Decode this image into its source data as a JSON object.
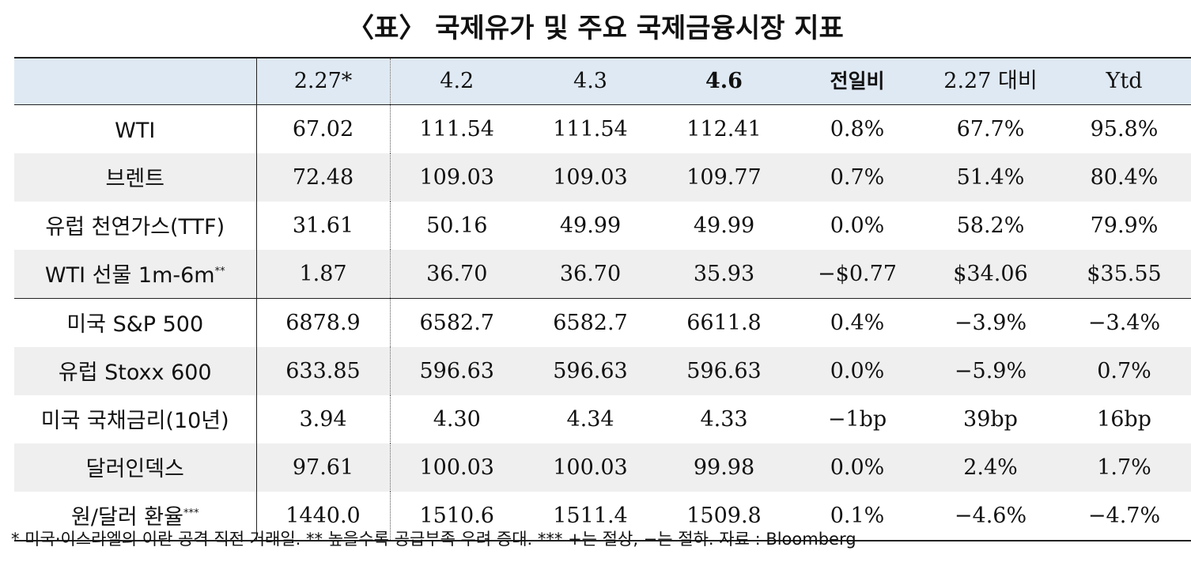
{
  "title": "〈표〉 국제유가 및 주요 국제금융시장 지표",
  "header": {
    "label": "",
    "col_227": "2.27*",
    "col_42": "4.2",
    "col_43": "4.3",
    "col_46": "4.6",
    "col_dod": "전일비",
    "col_vs227": "2.27 대비",
    "col_ytd": "Ytd"
  },
  "rows": [
    {
      "label": "WTI",
      "note": "",
      "v227": "67.02",
      "v42": "111.54",
      "v43": "111.54",
      "v46": "112.41",
      "dod": "0.8%",
      "vs227": "67.7%",
      "ytd": "95.8%"
    },
    {
      "label": "브렌트",
      "note": "",
      "v227": "72.48",
      "v42": "109.03",
      "v43": "109.03",
      "v46": "109.77",
      "dod": "0.7%",
      "vs227": "51.4%",
      "ytd": "80.4%"
    },
    {
      "label": "유럽 천연가스(TTF)",
      "note": "",
      "v227": "31.61",
      "v42": "50.16",
      "v43": "49.99",
      "v46": "49.99",
      "dod": "0.0%",
      "vs227": "58.2%",
      "ytd": "79.9%"
    },
    {
      "label": "WTI 선물 1m-6m",
      "note": "**",
      "v227": "1.87",
      "v42": "36.70",
      "v43": "36.70",
      "v46": "35.93",
      "dod": "−$0.77",
      "vs227": "$34.06",
      "ytd": "$35.55"
    },
    {
      "label": "미국 S&P 500",
      "note": "",
      "v227": "6878.9",
      "v42": "6582.7",
      "v43": "6582.7",
      "v46": "6611.8",
      "dod": "0.4%",
      "vs227": "−3.9%",
      "ytd": "−3.4%"
    },
    {
      "label": "유럽 Stoxx 600",
      "note": "",
      "v227": "633.85",
      "v42": "596.63",
      "v43": "596.63",
      "v46": "596.63",
      "dod": "0.0%",
      "vs227": "−5.9%",
      "ytd": "0.7%"
    },
    {
      "label": "미국 국채금리(10년)",
      "note": "",
      "v227": "3.94",
      "v42": "4.30",
      "v43": "4.34",
      "v46": "4.33",
      "dod": "−1bp",
      "vs227": "39bp",
      "ytd": "16bp"
    },
    {
      "label": "달러인덱스",
      "note": "",
      "v227": "97.61",
      "v42": "100.03",
      "v43": "100.03",
      "v46": "99.98",
      "dod": "0.0%",
      "vs227": "2.4%",
      "ytd": "1.7%"
    },
    {
      "label": "원/달러 환율",
      "note": "***",
      "v227": "1440.0",
      "v42": "1510.6",
      "v43": "1511.4",
      "v46": "1509.8",
      "dod": "0.1%",
      "vs227": "−4.6%",
      "ytd": "−4.7%"
    }
  ],
  "footnote": "* 미국·이스라엘의 이란 공격 직전 거래일. ** 높을수록 공급부족 우려 증대. *** +는 절상, −는 절하. 자료 : Bloomberg"
}
